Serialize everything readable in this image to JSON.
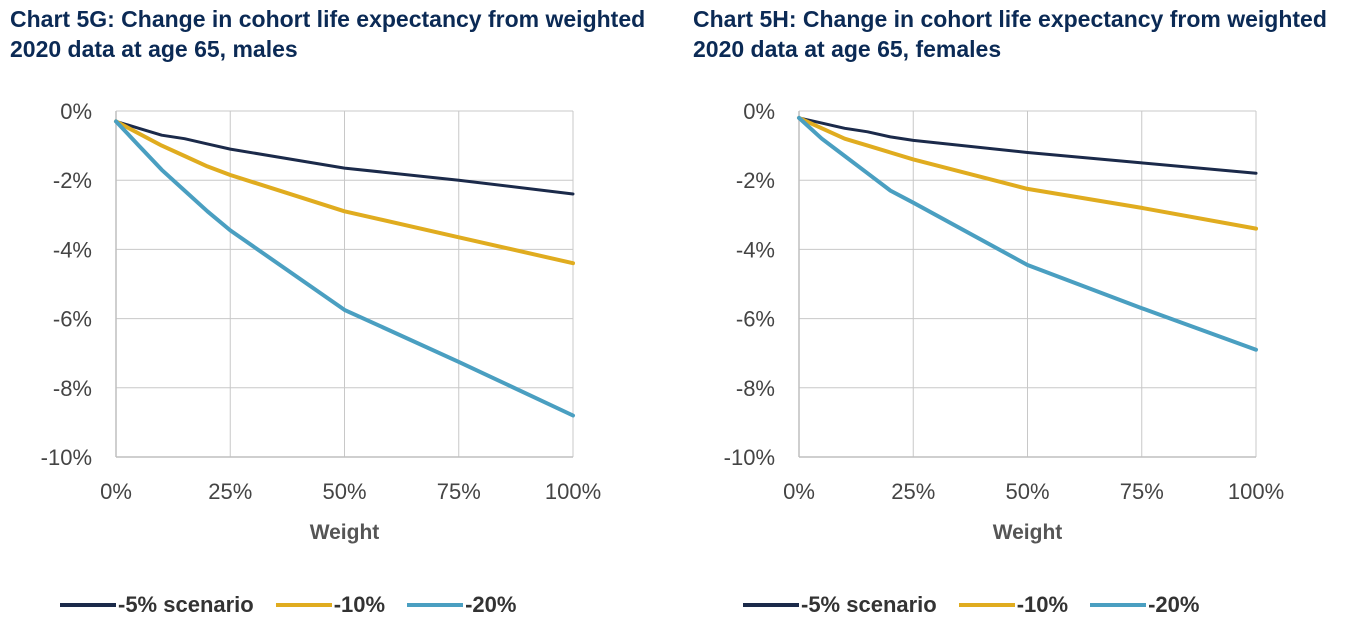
{
  "colors": {
    "s5": "#1b2a4a",
    "s10": "#e0ac1f",
    "s20": "#4a9fc1",
    "grid": "#c8c8c8",
    "tick": "#444444"
  },
  "charts": [
    {
      "title": "Chart 5G: Change in cohort life expectancy from weighted 2020 data at age 65, males"
    },
    {
      "title": "Chart 5H: Change in cohort life expectancy from weighted 2020 data at age 65, females"
    }
  ],
  "legend": [
    {
      "label": "-5% scenario",
      "color": "#1b2a4a"
    },
    {
      "label": "-10%",
      "color": "#e0ac1f"
    },
    {
      "label": "-20%",
      "color": "#4a9fc1"
    }
  ],
  "chart_data": [
    {
      "type": "line",
      "title": "Chart 5G: Change in cohort life expectancy from weighted 2020 data at age 65, males",
      "xlabel": "Weight",
      "ylabel": "",
      "x": [
        0,
        5,
        10,
        15,
        20,
        25,
        50,
        75,
        100
      ],
      "xlim": [
        0,
        100
      ],
      "ylim": [
        -10,
        0
      ],
      "x_ticks": [
        "0%",
        "25%",
        "50%",
        "75%",
        "100%"
      ],
      "y_ticks": [
        "0%",
        "-2%",
        "-4%",
        "-6%",
        "-8%",
        "-10%"
      ],
      "grid": true,
      "legend_position": "bottom",
      "series": [
        {
          "name": "-5% scenario",
          "color": "#1b2a4a",
          "values": [
            -0.3,
            -0.5,
            -0.7,
            -0.8,
            -0.95,
            -1.1,
            -1.65,
            -2.0,
            -2.4
          ]
        },
        {
          "name": "-10%",
          "color": "#e0ac1f",
          "values": [
            -0.3,
            -0.65,
            -1.0,
            -1.3,
            -1.6,
            -1.85,
            -2.9,
            -3.65,
            -4.4
          ]
        },
        {
          "name": "-20%",
          "color": "#4a9fc1",
          "values": [
            -0.3,
            -1.0,
            -1.7,
            -2.3,
            -2.9,
            -3.45,
            -5.75,
            -7.25,
            -8.8
          ]
        }
      ]
    },
    {
      "type": "line",
      "title": "Chart 5H: Change in cohort life expectancy from weighted 2020 data at age 65, females",
      "xlabel": "Weight",
      "ylabel": "",
      "x": [
        0,
        5,
        10,
        15,
        20,
        25,
        50,
        75,
        100
      ],
      "xlim": [
        0,
        100
      ],
      "ylim": [
        -10,
        0
      ],
      "x_ticks": [
        "0%",
        "25%",
        "50%",
        "75%",
        "100%"
      ],
      "y_ticks": [
        "0%",
        "-2%",
        "-4%",
        "-6%",
        "-8%",
        "-10%"
      ],
      "grid": true,
      "legend_position": "bottom",
      "series": [
        {
          "name": "-5% scenario",
          "color": "#1b2a4a",
          "values": [
            -0.2,
            -0.35,
            -0.5,
            -0.6,
            -0.75,
            -0.85,
            -1.2,
            -1.5,
            -1.8
          ]
        },
        {
          "name": "-10%",
          "color": "#e0ac1f",
          "values": [
            -0.2,
            -0.5,
            -0.8,
            -1.0,
            -1.2,
            -1.4,
            -2.25,
            -2.8,
            -3.4
          ]
        },
        {
          "name": "-20%",
          "color": "#4a9fc1",
          "values": [
            -0.2,
            -0.8,
            -1.3,
            -1.8,
            -2.3,
            -2.65,
            -4.45,
            -5.7,
            -6.9
          ]
        }
      ]
    }
  ]
}
